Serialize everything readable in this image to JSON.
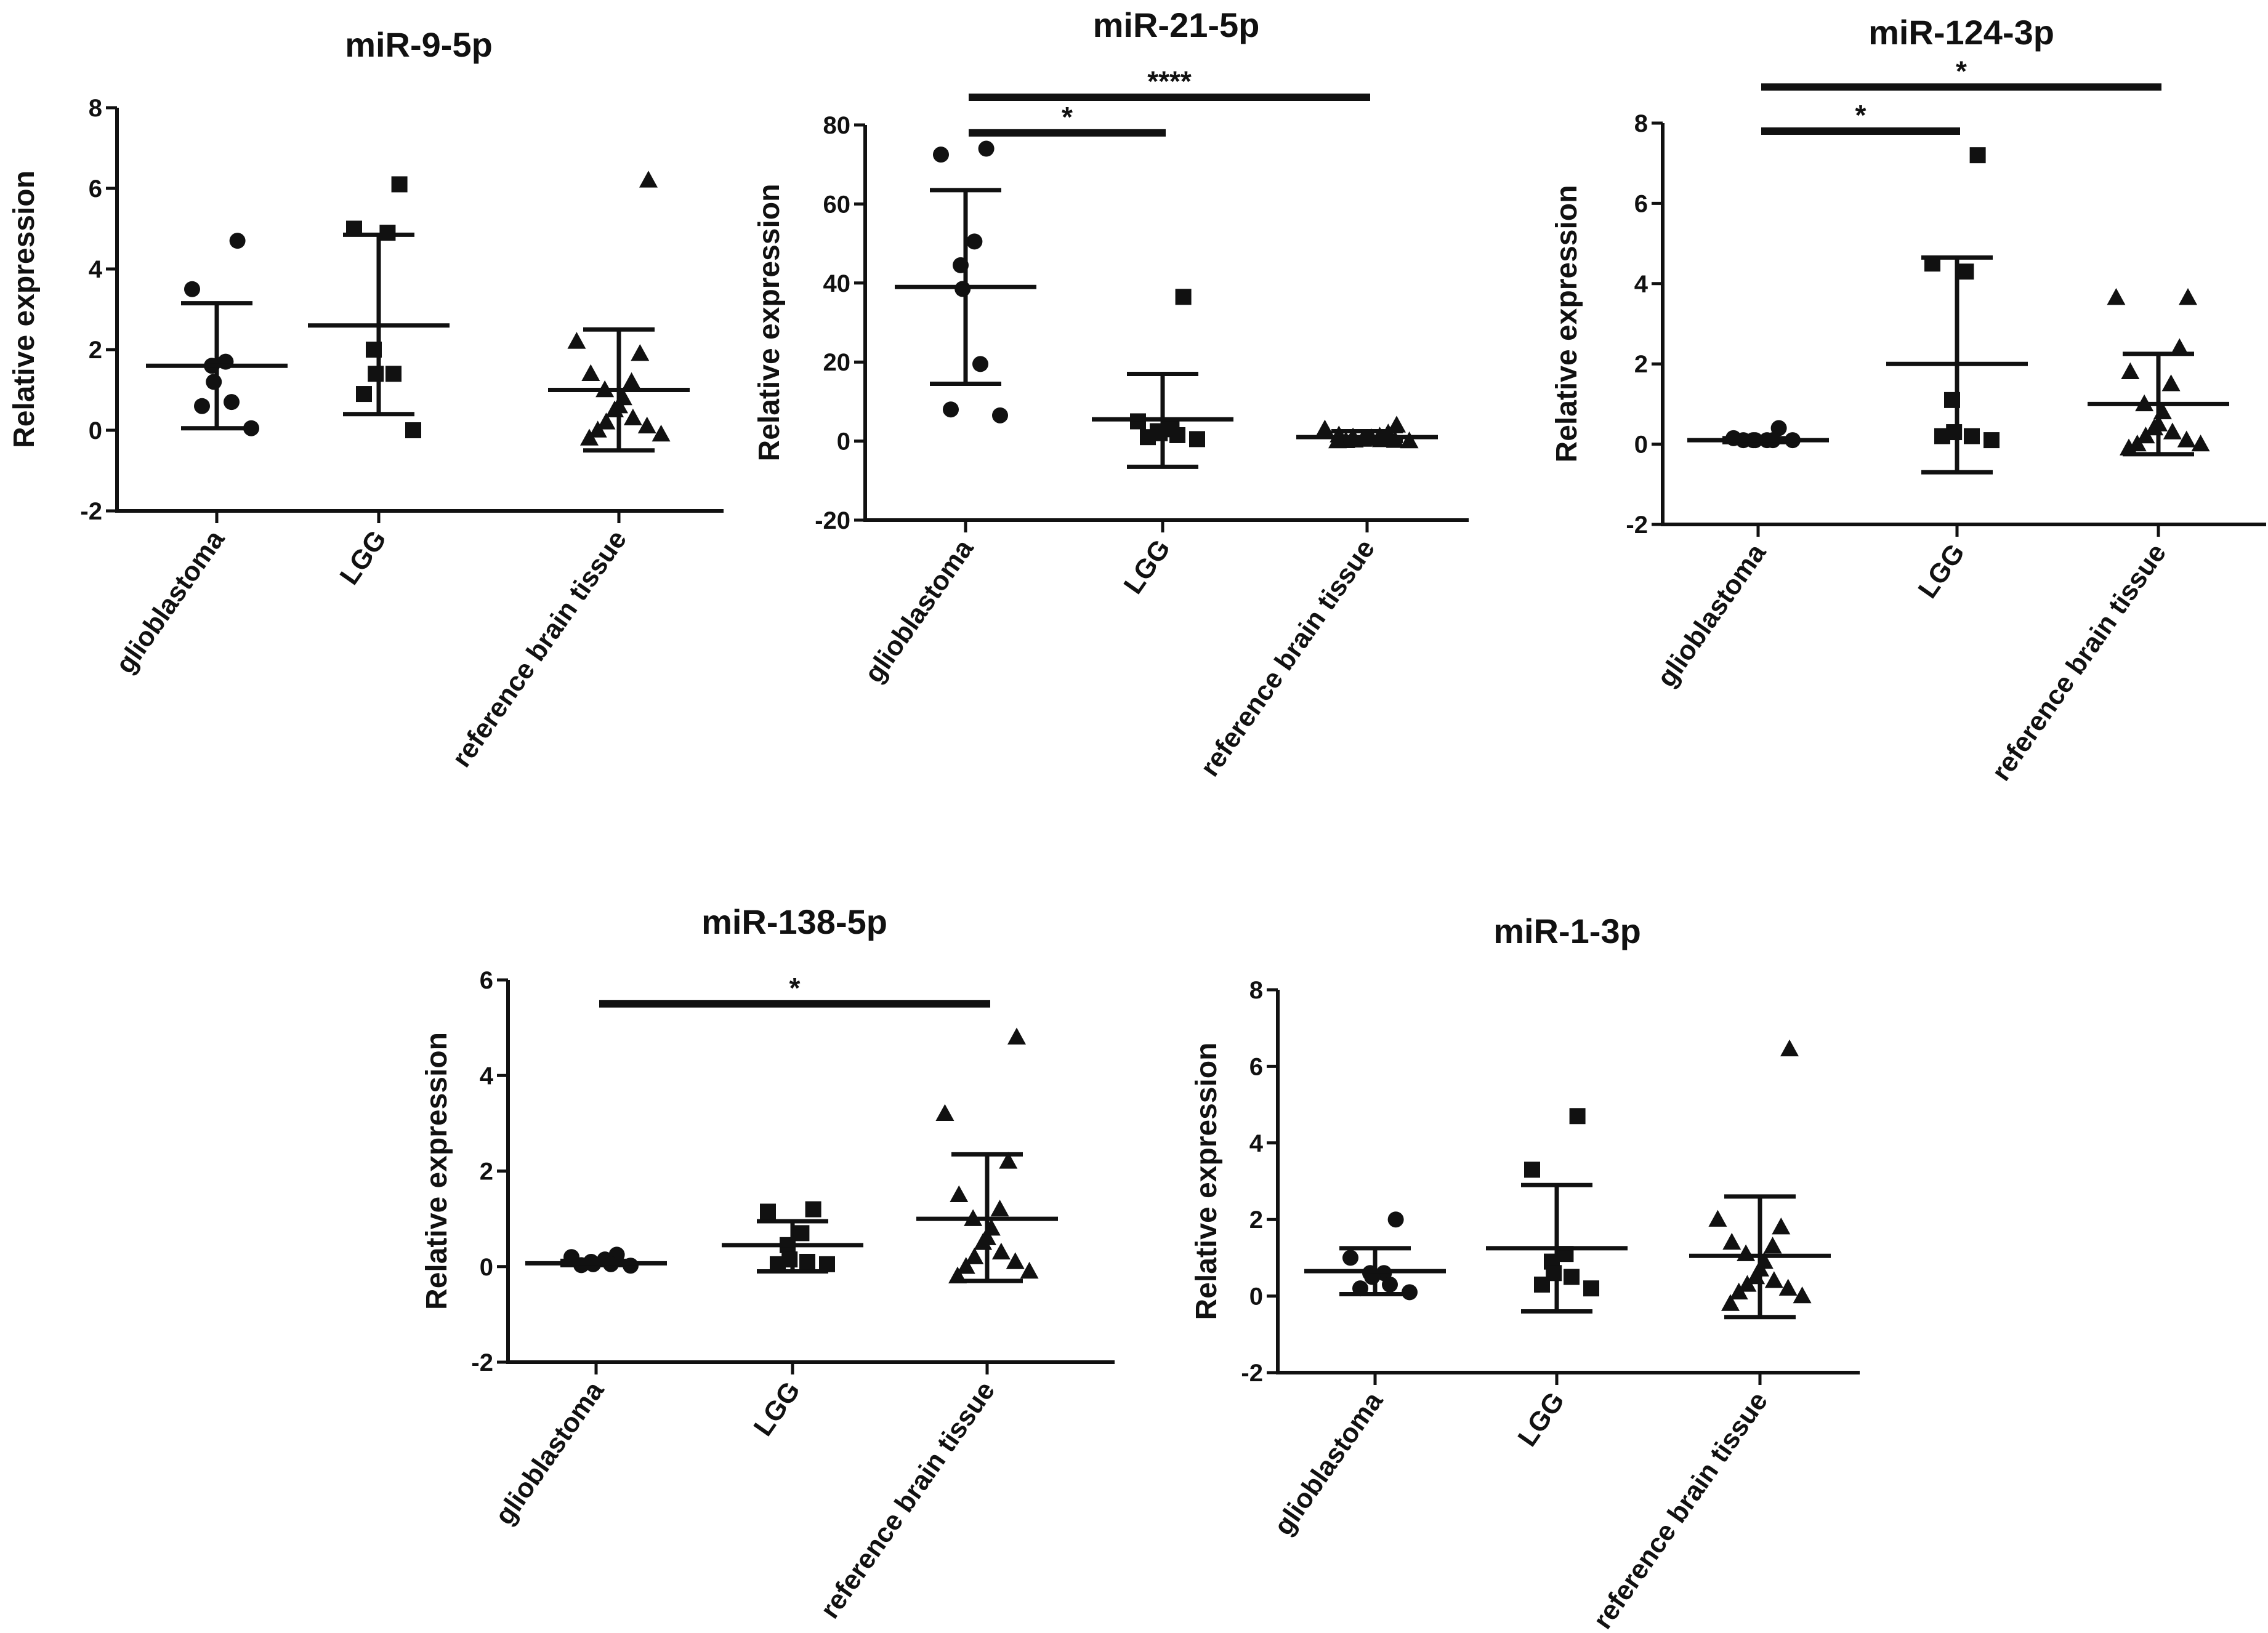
{
  "chart_data": [
    {
      "type": "scatter",
      "title": "miR-9-5p",
      "ylabel": "Relative expression",
      "ylim": [
        -2,
        8
      ],
      "yticks": [
        -2,
        0,
        2,
        4,
        6,
        8
      ],
      "categories": [
        "glioblastoma",
        "LGG",
        "reference brain tissue"
      ],
      "groups": [
        {
          "name": "glioblastoma",
          "marker": "circle",
          "mean": 1.6,
          "sd_low": 0.05,
          "sd_high": 3.15,
          "points": [
            4.7,
            3.5,
            1.7,
            1.6,
            1.2,
            0.7,
            0.6,
            0.05
          ]
        },
        {
          "name": "LGG",
          "marker": "square",
          "mean": 2.6,
          "sd_low": 0.4,
          "sd_high": 4.85,
          "points": [
            6.1,
            5.0,
            4.9,
            2.0,
            1.4,
            1.4,
            0.9,
            0.0
          ]
        },
        {
          "name": "reference brain tissue",
          "marker": "triangle",
          "mean": 1.0,
          "sd_low": -0.5,
          "sd_high": 2.5,
          "points": [
            6.2,
            2.2,
            1.9,
            1.4,
            1.2,
            1.0,
            0.8,
            0.6,
            0.5,
            0.3,
            0.2,
            0.1,
            0.0,
            -0.1,
            -0.2
          ]
        }
      ],
      "significance": []
    },
    {
      "type": "scatter",
      "title": "miR-21-5p",
      "ylabel": "Relative expression",
      "ylim": [
        -20,
        80
      ],
      "yticks": [
        -20,
        0,
        20,
        40,
        60,
        80
      ],
      "categories": [
        "glioblastoma",
        "LGG",
        "reference  brain tissue"
      ],
      "groups": [
        {
          "name": "glioblastoma",
          "marker": "circle",
          "mean": 39,
          "sd_low": 14.5,
          "sd_high": 63.5,
          "points": [
            74,
            72.5,
            50.5,
            44.5,
            38.5,
            19.5,
            8,
            6.5
          ]
        },
        {
          "name": "LGG",
          "marker": "square",
          "mean": 5.5,
          "sd_low": -6.5,
          "sd_high": 17,
          "points": [
            36.5,
            5,
            3,
            2.5,
            2,
            1.5,
            1,
            0.5
          ]
        },
        {
          "name": "reference  brain tissue",
          "marker": "triangle",
          "mean": 1,
          "sd_low": 0,
          "sd_high": 2.5,
          "points": [
            4,
            3,
            2,
            1.5,
            1.2,
            1,
            0.8,
            0.6,
            0.4,
            0.3,
            0.2,
            0.1,
            0.05,
            0,
            0
          ]
        }
      ],
      "significance": [
        {
          "from": 0,
          "to": 2,
          "y": 87,
          "label": "****"
        },
        {
          "from": 0,
          "to": 1,
          "y": 78,
          "label": "*"
        }
      ]
    },
    {
      "type": "scatter",
      "title": "miR-124-3p",
      "ylabel": "Relative expression",
      "ylim": [
        -2,
        8
      ],
      "yticks": [
        -2,
        0,
        2,
        4,
        6,
        8
      ],
      "categories": [
        "glioblastoma",
        "LGG",
        "reference brain tissue"
      ],
      "groups": [
        {
          "name": "glioblastoma",
          "marker": "circle",
          "mean": 0.1,
          "sd_low": 0.05,
          "sd_high": 0.15,
          "points": [
            0.4,
            0.15,
            0.1,
            0.1,
            0.1,
            0.1,
            0.1,
            0.1
          ]
        },
        {
          "name": "LGG",
          "marker": "square",
          "mean": 2.0,
          "sd_low": -0.7,
          "sd_high": 4.65,
          "points": [
            7.2,
            4.5,
            4.3,
            1.1,
            0.3,
            0.2,
            0.2,
            0.1
          ]
        },
        {
          "name": "reference brain tissue",
          "marker": "triangle",
          "mean": 1.0,
          "sd_low": -0.25,
          "sd_high": 2.25,
          "points": [
            3.65,
            3.65,
            2.4,
            1.8,
            1.5,
            1.0,
            0.8,
            0.5,
            0.4,
            0.3,
            0.2,
            0.1,
            0.0,
            0.0,
            -0.1
          ]
        }
      ],
      "significance": [
        {
          "from": 0,
          "to": 2,
          "y": 8.9,
          "label": "*"
        },
        {
          "from": 0,
          "to": 1,
          "y": 7.8,
          "label": "*"
        }
      ]
    },
    {
      "type": "scatter",
      "title": "miR-138-5p",
      "ylabel": "Relative expression",
      "ylim": [
        -2,
        6
      ],
      "yticks": [
        -2,
        0,
        2,
        4,
        6
      ],
      "categories": [
        "glioblastoma",
        "LGG",
        "reference brain tissue"
      ],
      "groups": [
        {
          "name": "glioblastoma",
          "marker": "circle",
          "mean": 0.07,
          "sd_low": 0.03,
          "sd_high": 0.12,
          "points": [
            0.25,
            0.2,
            0.15,
            0.1,
            0.05,
            0.05,
            0.03,
            0.02
          ]
        },
        {
          "name": "LGG",
          "marker": "square",
          "mean": 0.45,
          "sd_low": -0.1,
          "sd_high": 0.95,
          "points": [
            1.2,
            1.15,
            0.7,
            0.45,
            0.15,
            0.1,
            0.05,
            0.05
          ]
        },
        {
          "name": "reference brain tissue",
          "marker": "triangle",
          "mean": 1.0,
          "sd_low": -0.3,
          "sd_high": 2.35,
          "points": [
            4.8,
            3.2,
            2.2,
            1.5,
            1.2,
            1.0,
            0.8,
            0.6,
            0.5,
            0.3,
            0.2,
            0.1,
            0.0,
            -0.1,
            -0.2
          ]
        }
      ],
      "significance": [
        {
          "from": 0,
          "to": 2,
          "y": 5.5,
          "label": "*"
        }
      ]
    },
    {
      "type": "scatter",
      "title": "miR-1-3p",
      "ylabel": "Relative expression",
      "ylim": [
        -2,
        8
      ],
      "yticks": [
        -2,
        0,
        2,
        4,
        6,
        8
      ],
      "categories": [
        "glioblastoma",
        "LGG",
        "reference  brain tissue"
      ],
      "groups": [
        {
          "name": "glioblastoma",
          "marker": "circle",
          "mean": 0.65,
          "sd_low": 0.05,
          "sd_high": 1.25,
          "points": [
            2.0,
            1.0,
            0.6,
            0.6,
            0.5,
            0.3,
            0.2,
            0.1
          ]
        },
        {
          "name": "LGG",
          "marker": "square",
          "mean": 1.25,
          "sd_low": -0.4,
          "sd_high": 2.9,
          "points": [
            4.7,
            3.3,
            1.1,
            0.9,
            0.6,
            0.5,
            0.3,
            0.2
          ]
        },
        {
          "name": "reference  brain tissue",
          "marker": "triangle",
          "mean": 1.05,
          "sd_low": -0.55,
          "sd_high": 2.6,
          "points": [
            6.45,
            2.0,
            1.8,
            1.4,
            1.3,
            1.1,
            0.9,
            0.7,
            0.5,
            0.4,
            0.3,
            0.2,
            0.1,
            0.0,
            -0.2
          ]
        }
      ],
      "significance": []
    }
  ]
}
